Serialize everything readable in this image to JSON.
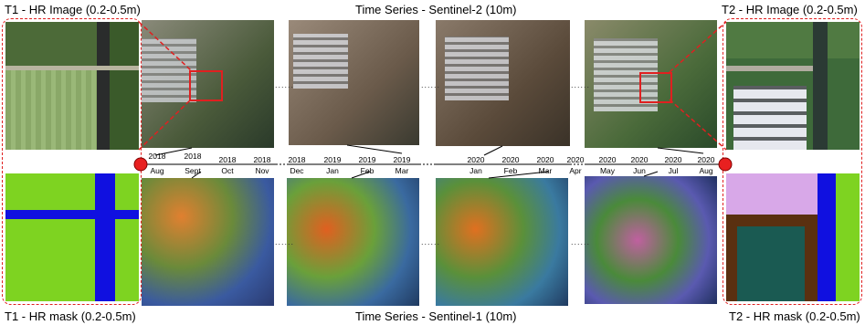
{
  "labels": {
    "t1_hr_image": "T1 - HR Image (0.2-0.5m)",
    "t2_hr_image": "T2 - HR Image (0.2-0.5m)",
    "t1_hr_mask": "T1 - HR mask (0.2-0.5m)",
    "t2_hr_mask": "T2 - HR mask (0.2-0.5m)",
    "sentinel2": "Time Series - Sentinel-2 (10m)",
    "sentinel1": "Time Series - Sentinel-1 (10m)"
  },
  "timeline": [
    {
      "year": "2018",
      "month": "Aug"
    },
    {
      "year": "2018",
      "month": "Sept"
    },
    {
      "year": "2018",
      "month": "Oct"
    },
    {
      "year": "2018",
      "month": "Nov"
    },
    {
      "year": "2018",
      "month": "Dec"
    },
    {
      "year": "2019",
      "month": "Jan"
    },
    {
      "year": "2019",
      "month": "Feb"
    },
    {
      "year": "2019",
      "month": "Mar"
    },
    {
      "year": "2020",
      "month": "Jan"
    },
    {
      "year": "2020",
      "month": "Feb"
    },
    {
      "year": "2020",
      "month": "Mar"
    },
    {
      "year": "2020",
      "month": "Apr"
    },
    {
      "year": "2020",
      "month": "May"
    },
    {
      "year": "2020",
      "month": "Jun"
    },
    {
      "year": "2020",
      "month": "Jul"
    },
    {
      "year": "2020",
      "month": "Aug"
    }
  ],
  "ellipsis": "......",
  "colors": {
    "dashed_frame": "#e02020",
    "marker": "#e82020",
    "mask_water": "#1010e0",
    "mask_field": "#7ed321",
    "mask_building": "#d8a8e8",
    "mask_bare": "#5a3010",
    "mask_crop": "#1a5a52"
  }
}
